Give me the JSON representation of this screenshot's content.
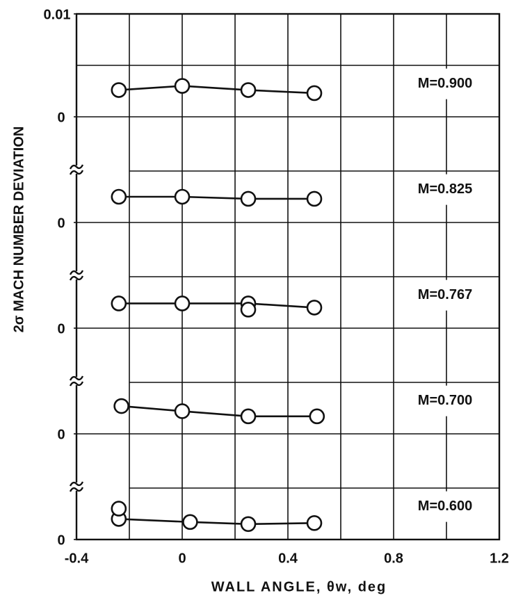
{
  "chart_data": [
    {
      "type": "line",
      "ylabel": "2σ MACH NUMBER DEVIATION",
      "title": "M=0.900",
      "x": [
        -0.24,
        0,
        0.25,
        0.5
      ],
      "values": [
        0.0026,
        0.003,
        0.0026,
        0.0023
      ],
      "xlim": [
        -0.4,
        1.2
      ],
      "ylim": [
        0,
        0.01
      ],
      "yticks": [
        0,
        0.01
      ],
      "minor_yticks": [
        0.005
      ]
    },
    {
      "type": "line",
      "title": "M=0.825",
      "x": [
        -0.24,
        0,
        0.25,
        0.5
      ],
      "values": [
        0.0025,
        0.0025,
        0.0023,
        0.0023
      ],
      "xlim": [
        -0.4,
        1.2
      ],
      "ylim": [
        0,
        0.01
      ],
      "yticks": [
        0
      ],
      "minor_yticks": [
        0.005
      ]
    },
    {
      "type": "line",
      "title": "M=0.767",
      "x": [
        -0.24,
        0,
        0.25,
        0.5
      ],
      "values": [
        0.0024,
        0.0024,
        0.0024,
        0.002
      ],
      "extra_points": {
        "x": [
          0.25
        ],
        "values": [
          0.0018
        ]
      },
      "xlim": [
        -0.4,
        1.2
      ],
      "ylim": [
        0,
        0.01
      ],
      "yticks": [
        0
      ],
      "minor_yticks": [
        0.005
      ]
    },
    {
      "type": "line",
      "title": "M=0.700",
      "x": [
        -0.23,
        0,
        0.25,
        0.51
      ],
      "values": [
        0.0027,
        0.0022,
        0.0017,
        0.0017
      ],
      "xlim": [
        -0.4,
        1.2
      ],
      "ylim": [
        0,
        0.01
      ],
      "yticks": [
        0
      ],
      "minor_yticks": [
        0.005
      ]
    },
    {
      "type": "line",
      "title": "M=0.600",
      "xlabel": "WALL ANGLE, θw, deg",
      "x": [
        -0.24,
        0.03,
        0.25,
        0.5
      ],
      "values": [
        0.002,
        0.0017,
        0.0015,
        0.0016
      ],
      "extra_points": {
        "x": [
          -0.24
        ],
        "values": [
          0.003
        ]
      },
      "xlim": [
        -0.4,
        1.2
      ],
      "ylim": [
        0,
        0.01
      ],
      "yticks": [
        0
      ],
      "minor_yticks": [
        0.005
      ],
      "xticks": [
        -0.4,
        0,
        0.4,
        0.8,
        1.2
      ],
      "minor_xticks": [
        -0.2,
        0.2,
        0.6,
        1.0
      ]
    }
  ]
}
